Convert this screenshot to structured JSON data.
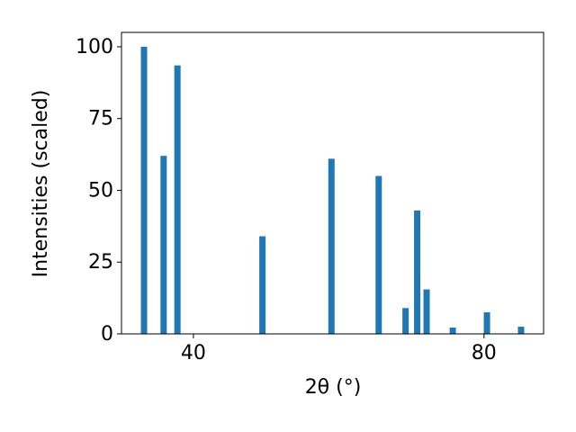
{
  "chart_data": {
    "type": "bar",
    "x_label": "2θ (°)",
    "y_label": "Intensities (scaled)",
    "x": [
      33.2,
      35.9,
      37.8,
      49.5,
      59.0,
      65.5,
      69.2,
      70.8,
      72.1,
      75.7,
      80.4,
      85.1
    ],
    "values": [
      100,
      62,
      93.5,
      34,
      61,
      55,
      9,
      43,
      15.5,
      2.2,
      7.5,
      2.5
    ],
    "color": "#1f77b4",
    "xlim": [
      30.1,
      88.2
    ],
    "xticks": [
      40,
      80
    ],
    "ylim": [
      0,
      105
    ],
    "yticks": [
      0,
      25,
      50,
      75,
      100
    ],
    "grid": false
  }
}
